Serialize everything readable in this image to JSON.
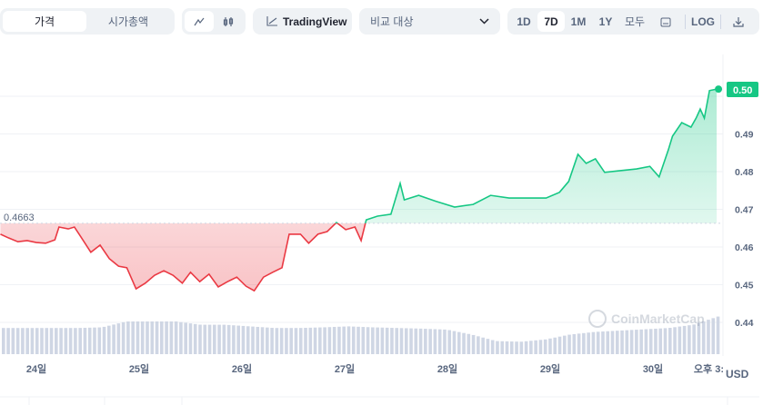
{
  "toolbar": {
    "type_tabs": [
      "가격",
      "시가총액"
    ],
    "type_selected": "가격",
    "chart_style_icons": [
      "line-chart-icon",
      "candlestick-icon"
    ],
    "tradingview_label": "TradingView",
    "compare_label": "비교 대상",
    "ranges": [
      "1D",
      "7D",
      "1M",
      "1Y",
      "모두"
    ],
    "range_selected": "7D",
    "log_label": "LOG"
  },
  "chart_data": {
    "type": "line",
    "xlabel": "",
    "ylabel": "",
    "x_unit": "day of month",
    "x_tick_labels": [
      "24일",
      "25일",
      "26일",
      "27일",
      "28일",
      "29일",
      "30일",
      "오후 3:"
    ],
    "x_ticks": [
      24,
      25,
      26,
      27,
      28,
      29,
      30,
      30.62
    ],
    "y_tick_labels": [
      "0.50",
      "0.49",
      "0.48",
      "0.47",
      "0.46",
      "0.45",
      "0.44"
    ],
    "ylim": [
      0.4365,
      0.5135
    ],
    "y_unit_label": "USD",
    "baseline": {
      "value": 0.4663,
      "label": "0.4663"
    },
    "current_price_label": "0.50",
    "colors": {
      "up": "#16c784",
      "down": "#ea3943",
      "volume": "#cfd6e4"
    },
    "watermark": "CoinMarketCap",
    "points": [
      [
        23.65,
        0.4634
      ],
      [
        23.73,
        0.4624
      ],
      [
        23.82,
        0.4614
      ],
      [
        23.91,
        0.4617
      ],
      [
        24.0,
        0.4612
      ],
      [
        24.09,
        0.461
      ],
      [
        24.18,
        0.4619
      ],
      [
        24.22,
        0.4653
      ],
      [
        24.31,
        0.4648
      ],
      [
        24.37,
        0.4653
      ],
      [
        24.44,
        0.4624
      ],
      [
        24.53,
        0.4586
      ],
      [
        24.62,
        0.4605
      ],
      [
        24.71,
        0.4569
      ],
      [
        24.8,
        0.4549
      ],
      [
        24.88,
        0.4545
      ],
      [
        24.97,
        0.4489
      ],
      [
        25.06,
        0.4504
      ],
      [
        25.15,
        0.4525
      ],
      [
        25.24,
        0.4537
      ],
      [
        25.33,
        0.4525
      ],
      [
        25.42,
        0.4504
      ],
      [
        25.5,
        0.4533
      ],
      [
        25.59,
        0.4508
      ],
      [
        25.68,
        0.4528
      ],
      [
        25.77,
        0.4494
      ],
      [
        25.86,
        0.4508
      ],
      [
        25.95,
        0.452
      ],
      [
        26.04,
        0.4496
      ],
      [
        26.12,
        0.4484
      ],
      [
        26.21,
        0.452
      ],
      [
        26.3,
        0.4533
      ],
      [
        26.39,
        0.4545
      ],
      [
        26.46,
        0.4634
      ],
      [
        26.57,
        0.4634
      ],
      [
        26.65,
        0.461
      ],
      [
        26.74,
        0.4634
      ],
      [
        26.83,
        0.4641
      ],
      [
        26.92,
        0.4665
      ],
      [
        27.01,
        0.4646
      ],
      [
        27.1,
        0.4653
      ],
      [
        27.16,
        0.4617
      ],
      [
        27.21,
        0.4672
      ],
      [
        27.32,
        0.4682
      ],
      [
        27.45,
        0.4687
      ],
      [
        27.54,
        0.4769
      ],
      [
        27.58,
        0.4725
      ],
      [
        27.72,
        0.4737
      ],
      [
        27.89,
        0.4721
      ],
      [
        28.07,
        0.4706
      ],
      [
        28.25,
        0.4713
      ],
      [
        28.42,
        0.4737
      ],
      [
        28.6,
        0.473
      ],
      [
        28.78,
        0.473
      ],
      [
        28.96,
        0.473
      ],
      [
        29.09,
        0.4745
      ],
      [
        29.18,
        0.4774
      ],
      [
        29.27,
        0.4846
      ],
      [
        29.35,
        0.4822
      ],
      [
        29.44,
        0.4834
      ],
      [
        29.53,
        0.4798
      ],
      [
        29.66,
        0.4802
      ],
      [
        29.84,
        0.4807
      ],
      [
        29.97,
        0.4814
      ],
      [
        30.06,
        0.4786
      ],
      [
        30.15,
        0.4858
      ],
      [
        30.19,
        0.4894
      ],
      [
        30.28,
        0.493
      ],
      [
        30.37,
        0.4918
      ],
      [
        30.42,
        0.4942
      ],
      [
        30.46,
        0.4966
      ],
      [
        30.5,
        0.4942
      ],
      [
        30.55,
        0.5015
      ],
      [
        30.62,
        0.5019
      ]
    ],
    "volume_relative": [
      0.8,
      0.8,
      0.8,
      0.8,
      0.82,
      1.0,
      1.0,
      1.0,
      0.9,
      0.9,
      0.85,
      0.8,
      0.8,
      0.82,
      0.85,
      0.82,
      0.8,
      0.78,
      0.75,
      0.6,
      0.4,
      0.38,
      0.45,
      0.6,
      0.68,
      0.72,
      0.76,
      0.8,
      0.9,
      1.15
    ]
  }
}
